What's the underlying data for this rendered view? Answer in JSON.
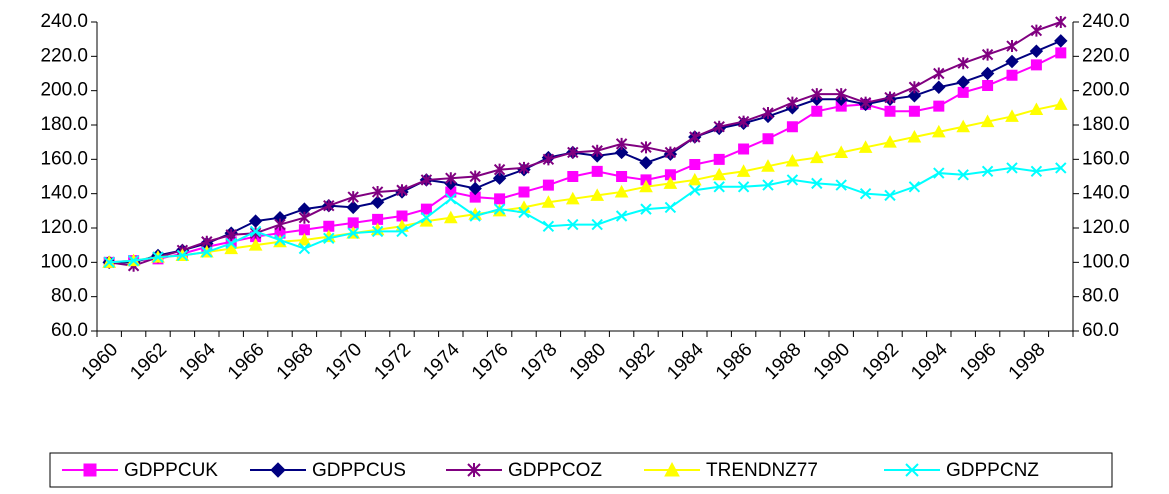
{
  "chart_data": {
    "type": "line",
    "categories": [
      "1960",
      null,
      "1962",
      null,
      "1964",
      null,
      "1966",
      null,
      "1968",
      null,
      "1970",
      null,
      "1972",
      null,
      "1974",
      null,
      "1976",
      null,
      "1978",
      null,
      "1980",
      null,
      "1982",
      null,
      "1984",
      null,
      "1986",
      null,
      "1988",
      null,
      "1990",
      null,
      "1992",
      null,
      "1994",
      null,
      "1996",
      null,
      "1998",
      null
    ],
    "ylim": [
      60,
      240
    ],
    "yticks": [
      {
        "value": 60,
        "label": "60.0"
      },
      {
        "value": 80,
        "label": "80.0"
      },
      {
        "value": 100,
        "label": "100.0"
      },
      {
        "value": 120,
        "label": "120.0"
      },
      {
        "value": 140,
        "label": "140.0"
      },
      {
        "value": 160,
        "label": "160.0"
      },
      {
        "value": 180,
        "label": "180.0"
      },
      {
        "value": 200,
        "label": "200.0"
      },
      {
        "value": 220,
        "label": "220.0"
      },
      {
        "value": 240,
        "label": "240.0"
      }
    ],
    "y2lim": [
      60,
      240
    ],
    "y2ticks": [
      {
        "value": 60,
        "label": "60.0"
      },
      {
        "value": 80,
        "label": "80.0"
      },
      {
        "value": 100,
        "label": "100.0"
      },
      {
        "value": 120,
        "label": "120.0"
      },
      {
        "value": 140,
        "label": "140.0"
      },
      {
        "value": 160,
        "label": "160.0"
      },
      {
        "value": 180,
        "label": "180.0"
      },
      {
        "value": 200,
        "label": "200.0"
      },
      {
        "value": 220,
        "label": "220.0"
      },
      {
        "value": 240,
        "label": "240.0"
      }
    ],
    "legend": "bottom",
    "series": [
      {
        "name": "GDPPCUK",
        "color": "#ff00ff",
        "marker": "square",
        "values": [
          100,
          101,
          102,
          105,
          109,
          112,
          115,
          117,
          119,
          121,
          123,
          125,
          127,
          131,
          141,
          138,
          137,
          141,
          145,
          150,
          153,
          150,
          148,
          151,
          157,
          160,
          166,
          172,
          179,
          188,
          191,
          192,
          188,
          188,
          191,
          199,
          203,
          209,
          215,
          222
        ]
      },
      {
        "name": "GDPPCUS",
        "color": "#000080",
        "marker": "diamond",
        "values": [
          100,
          100,
          104,
          107,
          111,
          117,
          124,
          126,
          131,
          133,
          132,
          135,
          141,
          148,
          146,
          143,
          149,
          154,
          161,
          164,
          162,
          164,
          158,
          163,
          173,
          178,
          181,
          185,
          190,
          195,
          195,
          192,
          195,
          197,
          202,
          205,
          210,
          217,
          223,
          229
        ]
      },
      {
        "name": "GDPPCOZ",
        "color": "#800080",
        "marker": "star",
        "values": [
          100,
          98,
          103,
          107,
          112,
          116,
          117,
          122,
          126,
          133,
          138,
          141,
          142,
          148,
          149,
          150,
          154,
          155,
          160,
          164,
          165,
          169,
          167,
          164,
          173,
          179,
          182,
          187,
          193,
          198,
          198,
          193,
          196,
          202,
          210,
          216,
          221,
          226,
          235,
          240
        ]
      },
      {
        "name": "TRENDNZ77",
        "color": "#ffff00",
        "marker": "triangle",
        "values": [
          100,
          101,
          103,
          104,
          106,
          108,
          110,
          112,
          113,
          115,
          117,
          119,
          121,
          124,
          126,
          128,
          130,
          132,
          135,
          137,
          139,
          141,
          144,
          146,
          148,
          151,
          153,
          156,
          159,
          161,
          164,
          167,
          170,
          173,
          176,
          179,
          182,
          185,
          189,
          192
        ]
      },
      {
        "name": "GDPPCNZ",
        "color": "#00ffff",
        "marker": "cross",
        "values": [
          100,
          101,
          103,
          104,
          106,
          111,
          118,
          113,
          108,
          114,
          117,
          118,
          118,
          126,
          137,
          127,
          131,
          129,
          121,
          122,
          122,
          127,
          131,
          132,
          142,
          144,
          144,
          145,
          148,
          146,
          145,
          140,
          139,
          144,
          152,
          151,
          153,
          155,
          153,
          155
        ]
      }
    ]
  }
}
